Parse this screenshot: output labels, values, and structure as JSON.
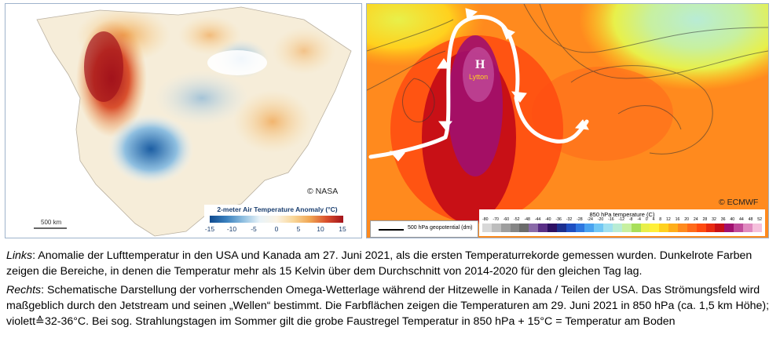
{
  "left_map": {
    "credit": "© NASA",
    "legend_title": "2-meter Air Temperature Anomaly (°C)",
    "legend_ticks": [
      "-15",
      "-10",
      "-5",
      "0",
      "5",
      "10",
      "15"
    ],
    "scale_label": "500 km",
    "colors": {
      "extreme_heat": "#a3131b",
      "cold": "#0f4a8f",
      "land_neutral": "#f6edd9"
    }
  },
  "right_map": {
    "credit": "© ECMWF",
    "high_label": "H",
    "place_label": "Lytton",
    "geo_legend": "500 hPa geopotential (dm)",
    "temp_legend_title": "850 hPa temperature   (C)",
    "temp_ticks": [
      "-80",
      "-70",
      "-60",
      "-52",
      "-48",
      "-44",
      "-40",
      "-36",
      "-32",
      "-28",
      "-24",
      "-20",
      "-16",
      "-12",
      "-8",
      "-4",
      "0",
      "4",
      "8",
      "12",
      "16",
      "20",
      "24",
      "28",
      "32",
      "36",
      "40",
      "44",
      "48",
      "52"
    ],
    "temp_colors": [
      "#d8d8d8",
      "#bdbdbd",
      "#9e9e9e",
      "#858585",
      "#6b6b6b",
      "#8a6aa8",
      "#5a2f86",
      "#2d1063",
      "#1c2f8f",
      "#1f4fc2",
      "#2f77e0",
      "#4aa3f0",
      "#71c7f5",
      "#9fe0f0",
      "#b8ecd5",
      "#c7f0a0",
      "#a8df5a",
      "#e8f04a",
      "#fff03a",
      "#ffd11e",
      "#ffae1a",
      "#ff8a1e",
      "#ff6a1a",
      "#ff4a10",
      "#e82a10",
      "#c81016",
      "#a0106e",
      "#c04a9a",
      "#e08ac0",
      "#f5c0dc"
    ],
    "colors": {
      "hot_850": "#ff8a1e",
      "very_hot": "#ff4a10",
      "purple_core": "#a0106e",
      "jet_arrow": "#ffffff"
    }
  },
  "captions": {
    "left_prefix": "Links",
    "left_text": ": Anomalie der Lufttemperatur in den USA und Kanada am 27. Juni 2021, als die ersten Temperaturrekorde gemessen wurden. Dunkelrote Farben zeigen die Bereiche, in denen die Temperatur mehr als 15 Kelvin über dem Durchschnitt von 2014-2020 für den gleichen Tag lag.",
    "right_prefix": "Rechts",
    "right_text": ": Schematische Darstellung der vorherrschenden Omega-Wetterlage während der Hitzewelle in Kanada / Teilen der USA. Das Strömungsfeld wird maßgeblich durch den Jetstream und seinen „Wellen“ bestimmt. Die Farbflächen zeigen die Temperaturen am 29. Juni 2021 in 850 hPa (ca. 1,5 km Höhe); violett≙32-36°C. Bei sog. Strahlungstagen im Sommer gilt die grobe Faustregel Temperatur in 850 hPa + 15°C = Temperatur am Boden"
  }
}
